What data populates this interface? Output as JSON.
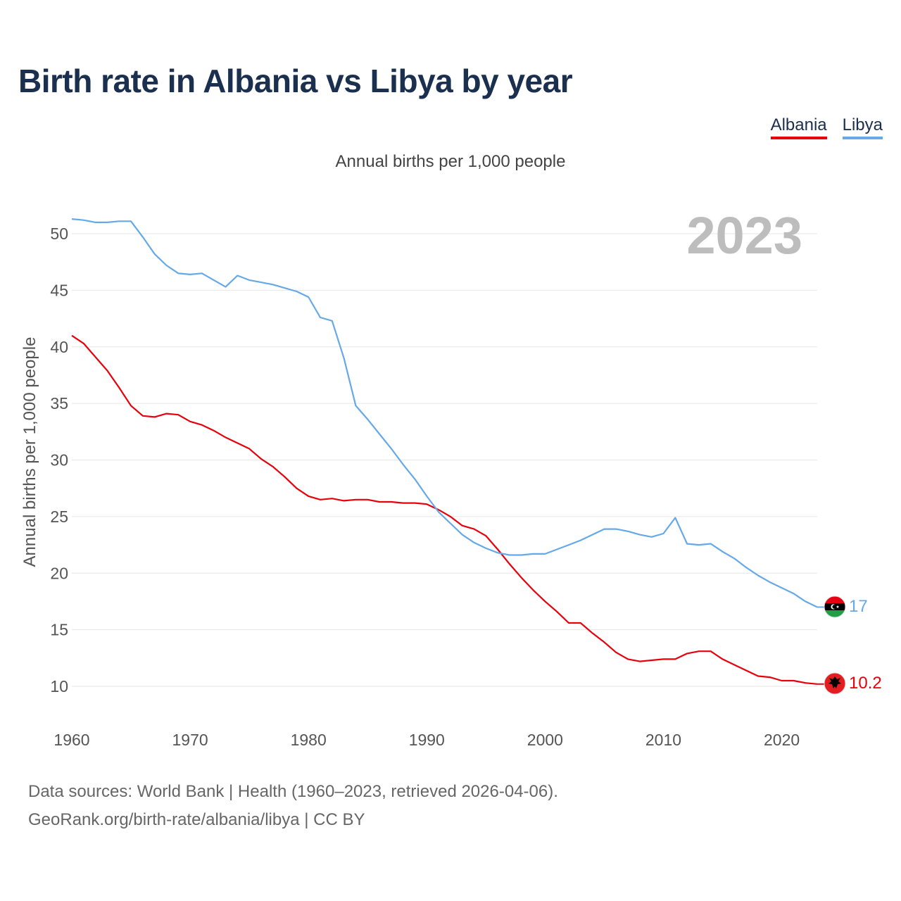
{
  "title": "Birth rate in Albania vs Libya by year",
  "subtitle": "Annual births per 1,000 people",
  "legend": [
    {
      "label": "Albania",
      "color": "#e8000b"
    },
    {
      "label": "Libya",
      "color": "#66a9e8"
    }
  ],
  "year_watermark": "2023",
  "source": {
    "line1": "Data sources: World Bank | Health (1960–2023, retrieved 2026-04-06).",
    "line2": "GeoRank.org/birth-rate/albania/libya | CC BY"
  },
  "chart_data": {
    "type": "line",
    "title": "Birth rate in Albania vs Libya by year",
    "subtitle": "Annual births per 1,000 people",
    "xlabel": "",
    "ylabel": "Annual births per 1,000 people",
    "xlim": [
      1960,
      2023
    ],
    "ylim": [
      7,
      53
    ],
    "xticks": [
      1960,
      1970,
      1980,
      1990,
      2000,
      2010,
      2020
    ],
    "yticks": [
      10,
      15,
      20,
      25,
      30,
      35,
      40,
      45,
      50
    ],
    "grid": true,
    "legend": "top-right",
    "x": [
      1960,
      1961,
      1962,
      1963,
      1964,
      1965,
      1966,
      1967,
      1968,
      1969,
      1970,
      1971,
      1972,
      1973,
      1974,
      1975,
      1976,
      1977,
      1978,
      1979,
      1980,
      1981,
      1982,
      1983,
      1984,
      1985,
      1986,
      1987,
      1988,
      1989,
      1990,
      1991,
      1992,
      1993,
      1994,
      1995,
      1996,
      1997,
      1998,
      1999,
      2000,
      2001,
      2002,
      2003,
      2004,
      2005,
      2006,
      2007,
      2008,
      2009,
      2010,
      2011,
      2012,
      2013,
      2014,
      2015,
      2016,
      2017,
      2018,
      2019,
      2020,
      2021,
      2022,
      2023
    ],
    "series": [
      {
        "name": "Albania",
        "color": "#e8000b",
        "end_label": "10.2",
        "values": [
          41.0,
          40.3,
          39.1,
          37.9,
          36.4,
          34.8,
          33.9,
          33.8,
          34.1,
          34.0,
          33.4,
          33.1,
          32.6,
          32.0,
          31.5,
          31.0,
          30.1,
          29.4,
          28.5,
          27.5,
          26.8,
          26.5,
          26.6,
          26.4,
          26.5,
          26.5,
          26.3,
          26.3,
          26.2,
          26.2,
          26.1,
          25.6,
          25.0,
          24.2,
          23.9,
          23.3,
          22.1,
          20.8,
          19.6,
          18.5,
          17.5,
          16.6,
          15.6,
          15.6,
          14.7,
          13.9,
          13.0,
          12.4,
          12.2,
          12.3,
          12.4,
          12.4,
          12.9,
          13.1,
          13.1,
          12.4,
          11.9,
          11.4,
          10.9,
          10.8,
          10.5,
          10.5,
          10.3,
          10.2
        ]
      },
      {
        "name": "Libya",
        "color": "#66a9e8",
        "end_label": "17",
        "values": [
          51.3,
          51.2,
          51.0,
          51.0,
          51.1,
          51.1,
          49.7,
          48.2,
          47.2,
          46.5,
          46.4,
          46.5,
          45.9,
          45.3,
          46.3,
          45.9,
          45.7,
          45.5,
          45.2,
          44.9,
          44.4,
          42.6,
          42.3,
          39.0,
          34.8,
          33.6,
          32.3,
          31.0,
          29.6,
          28.3,
          26.8,
          25.4,
          24.4,
          23.4,
          22.7,
          22.2,
          21.8,
          21.6,
          21.6,
          21.7,
          21.7,
          22.1,
          22.5,
          22.9,
          23.4,
          23.9,
          23.9,
          23.7,
          23.4,
          23.2,
          23.5,
          24.9,
          22.6,
          22.5,
          22.6,
          21.9,
          21.3,
          20.5,
          19.8,
          19.2,
          18.7,
          18.2,
          17.5,
          17.0
        ]
      }
    ]
  }
}
